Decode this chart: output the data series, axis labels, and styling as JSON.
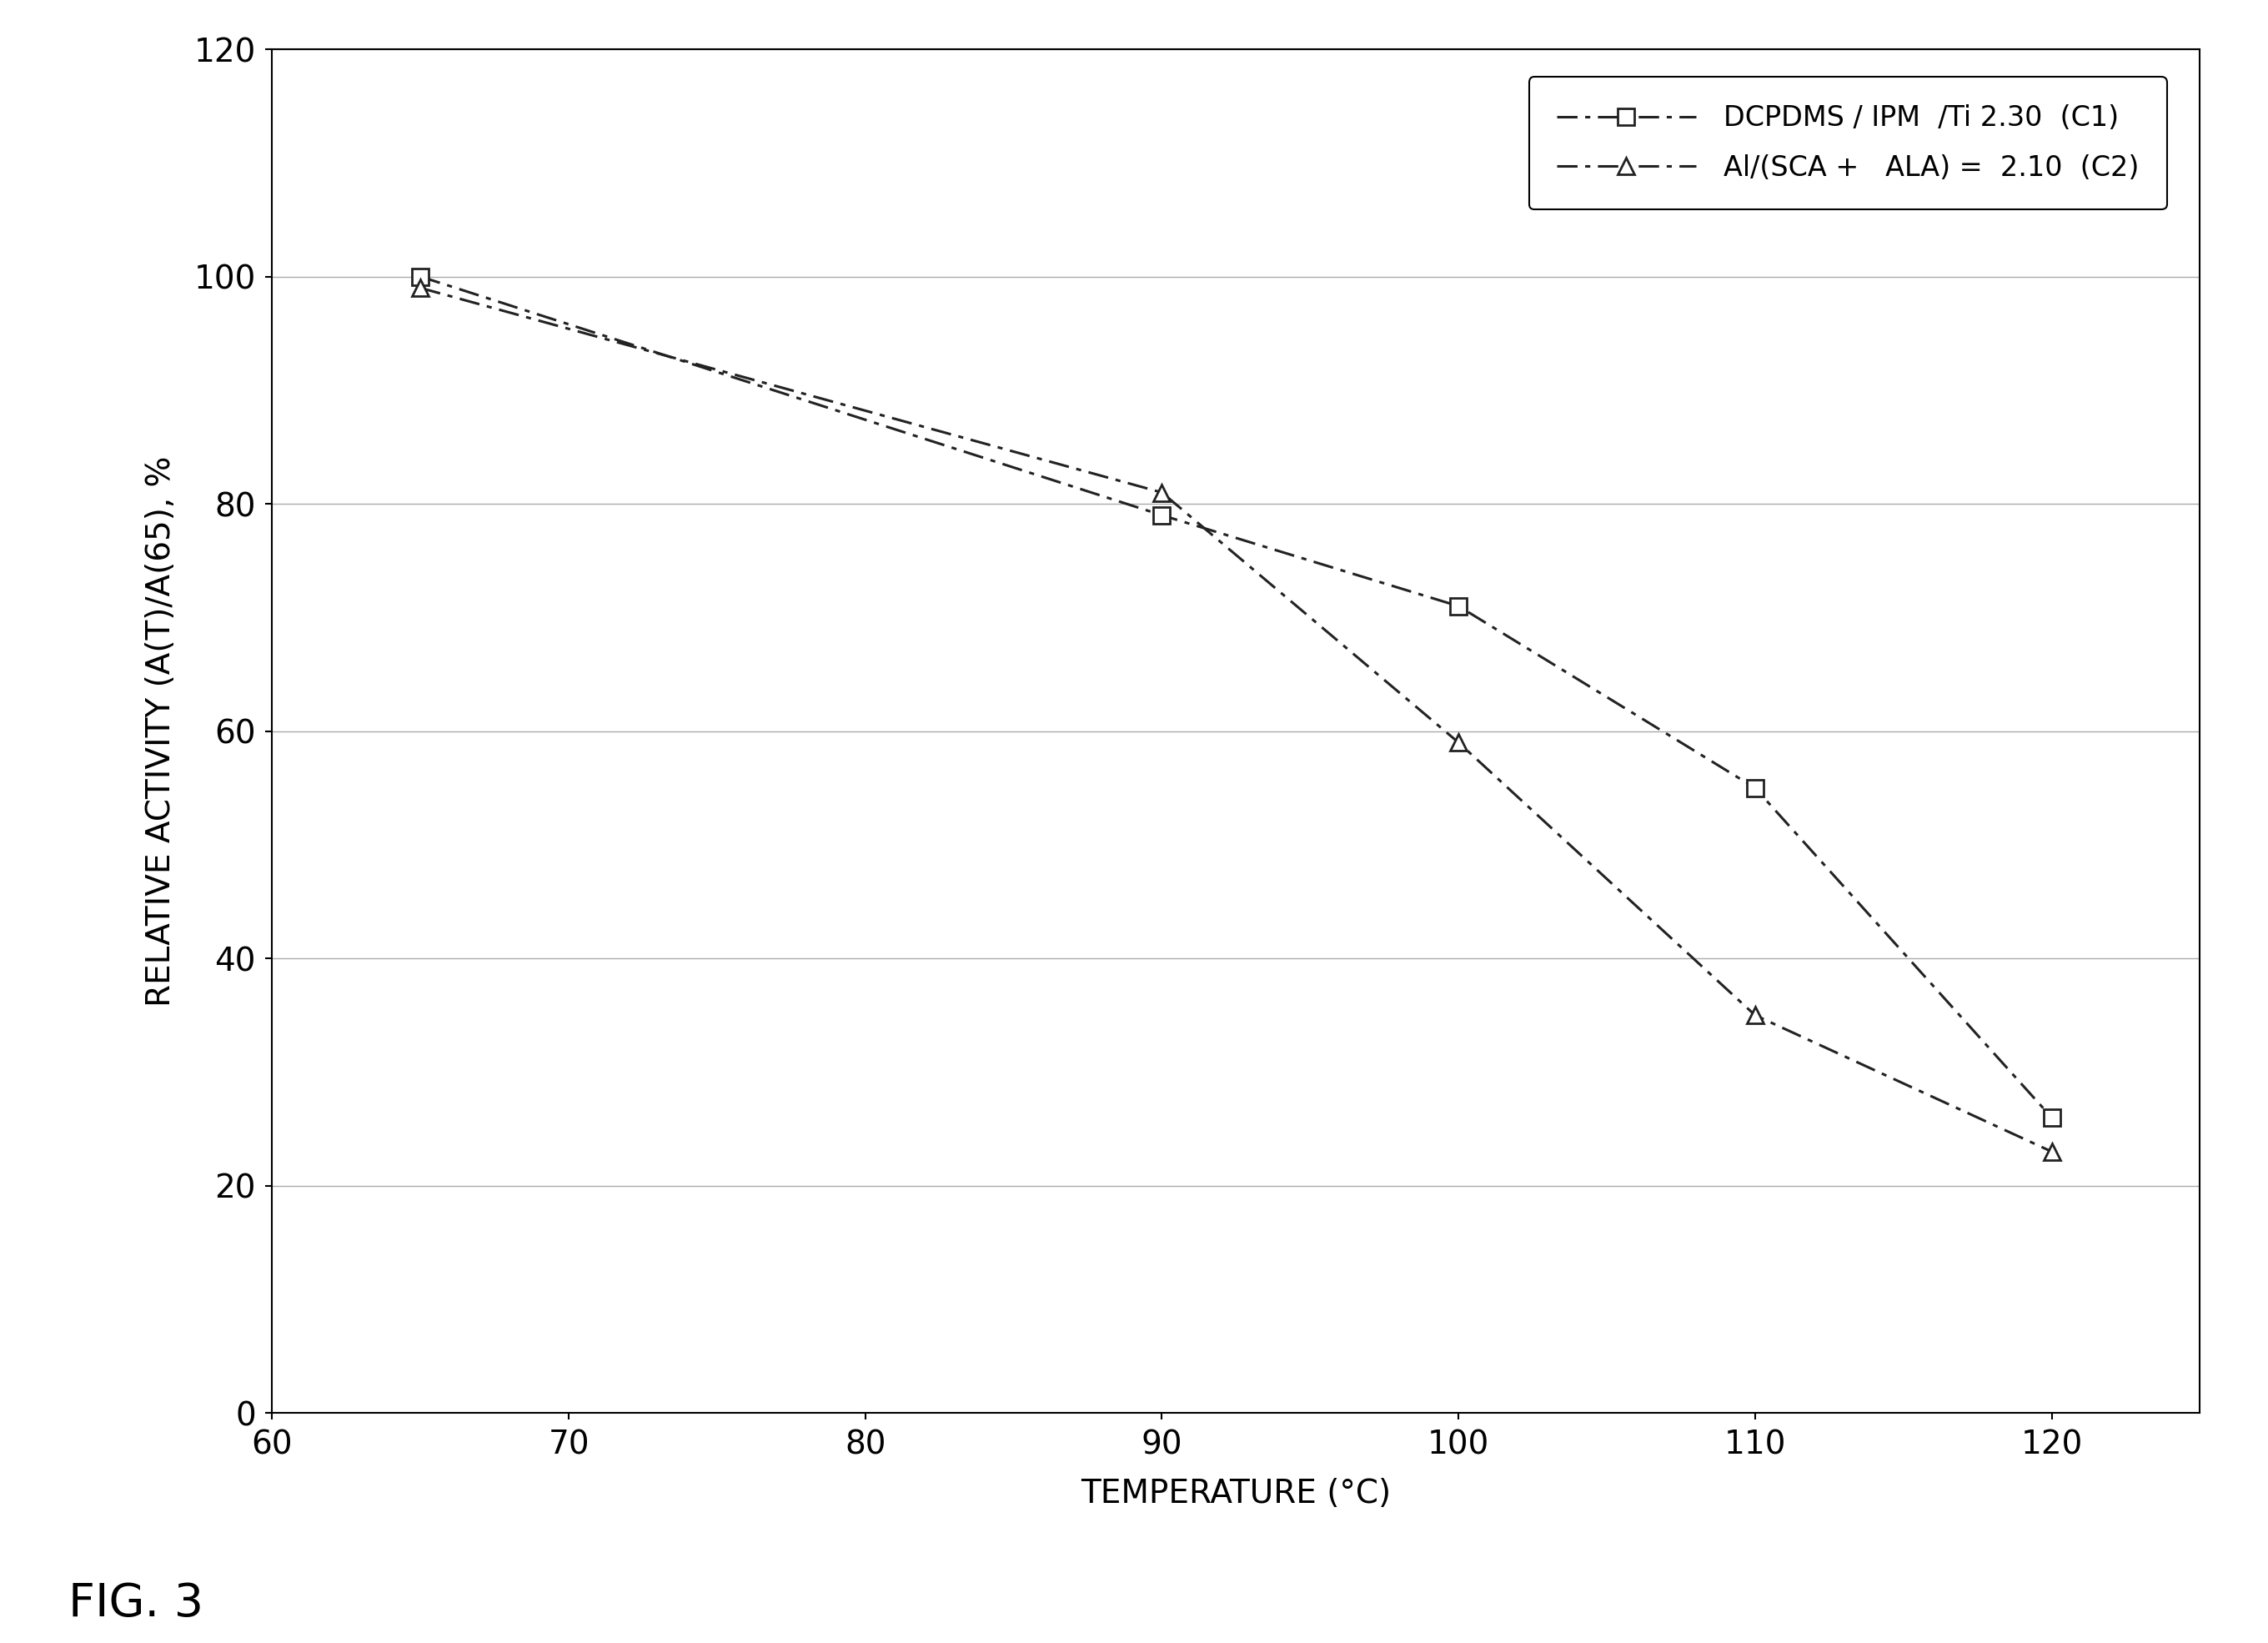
{
  "series": [
    {
      "label": "DCPDMS / IPM  /Ti 2.30  (C1)",
      "x": [
        65,
        90,
        100,
        110,
        120
      ],
      "y": [
        100,
        79,
        71,
        55,
        26
      ],
      "marker": "s",
      "color": "#222222",
      "markersize": 14
    },
    {
      "label": "Al/(SCA +   ALA) =  2.10  (C2)",
      "x": [
        65,
        90,
        100,
        110,
        120
      ],
      "y": [
        99,
        81,
        59,
        35,
        23
      ],
      "marker": "^",
      "color": "#222222",
      "markersize": 14
    }
  ],
  "xlabel": "TEMPERATURE (°C)",
  "ylabel": "RELATIVE ACTIVITY (A(T)/A(65), %",
  "xlim": [
    60,
    125
  ],
  "ylim": [
    0,
    120
  ],
  "xticks": [
    60,
    70,
    80,
    90,
    100,
    110,
    120
  ],
  "yticks": [
    0,
    20,
    40,
    60,
    80,
    100,
    120
  ],
  "fig_label": "FIG. 3",
  "background_color": "#ffffff",
  "grid_color": "#aaaaaa",
  "label_fontsize": 28,
  "tick_fontsize": 28,
  "legend_fontsize": 24,
  "fig_label_fontsize": 40,
  "linewidth": 2.2
}
